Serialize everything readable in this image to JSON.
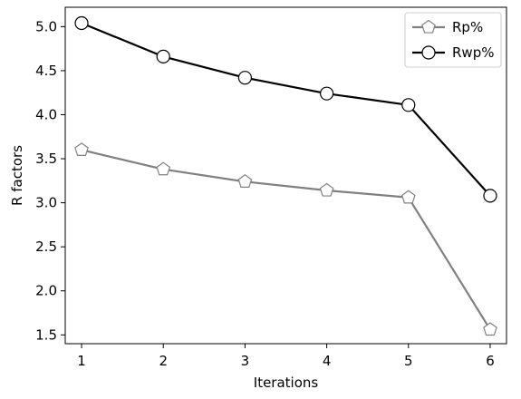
{
  "chart_data": {
    "type": "line",
    "xlabel": "Iterations",
    "ylabel": "R factors",
    "x": [
      1,
      2,
      3,
      4,
      5,
      6
    ],
    "xlim": [
      0.8,
      6.2
    ],
    "ylim": [
      1.4,
      5.22
    ],
    "xticks": [
      1,
      2,
      3,
      4,
      5,
      6
    ],
    "yticks": [
      1.5,
      2.0,
      2.5,
      3.0,
      3.5,
      4.0,
      4.5,
      5.0
    ],
    "ytick_labels": [
      "1.5",
      "2.0",
      "2.5",
      "3.0",
      "3.5",
      "4.0",
      "4.5",
      "5.0"
    ],
    "grid": false,
    "legend_position": "top-right",
    "series": [
      {
        "name": "Rp%",
        "values": [
          3.6,
          3.38,
          3.24,
          3.14,
          3.06,
          1.56
        ],
        "color": "#808080",
        "marker": "pentagon"
      },
      {
        "name": "Rwp%",
        "values": [
          5.04,
          4.66,
          4.42,
          4.24,
          4.11,
          3.08
        ],
        "color": "#000000",
        "marker": "circle"
      }
    ]
  }
}
